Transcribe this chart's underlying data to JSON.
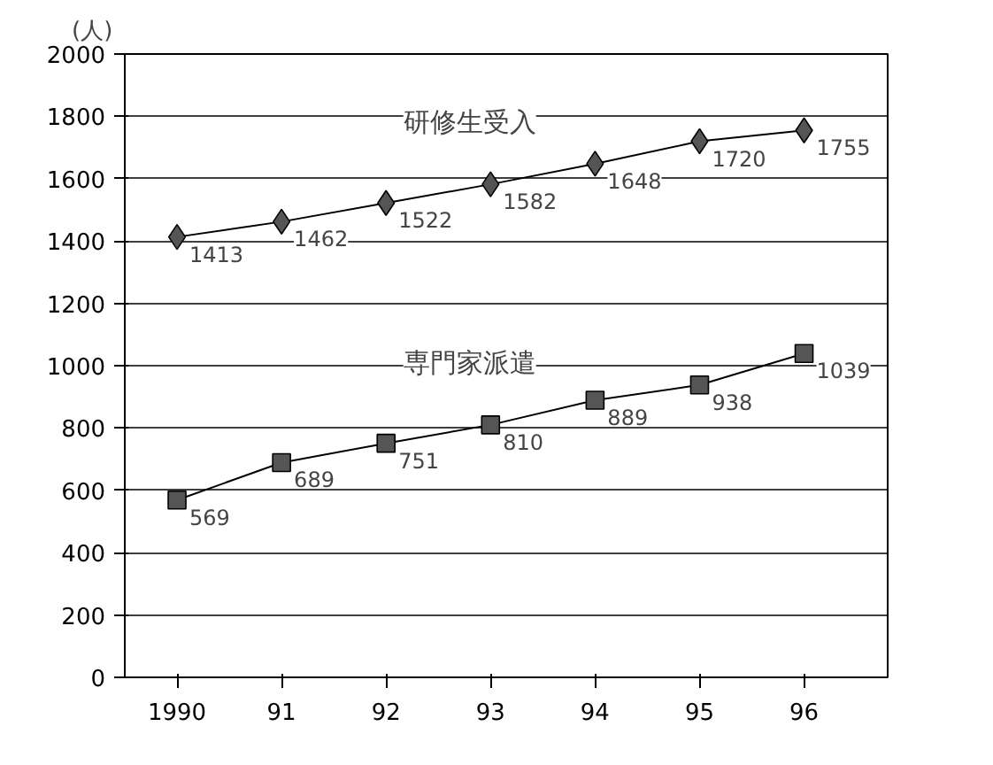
{
  "chart_data": {
    "type": "line",
    "ylabel": "(人)",
    "categories": [
      "1990",
      "91",
      "92",
      "93",
      "94",
      "95",
      "96"
    ],
    "series": [
      {
        "name": "研修生受入",
        "color": "#555555",
        "marker": "diamond",
        "values": [
          1413,
          1462,
          1522,
          1582,
          1648,
          1720,
          1755
        ]
      },
      {
        "name": "専門家派遣",
        "color": "#555555",
        "marker": "square",
        "values": [
          569,
          689,
          751,
          810,
          889,
          938,
          1039
        ]
      }
    ],
    "ylim": [
      0,
      2000
    ],
    "yticks": [
      0,
      200,
      400,
      600,
      800,
      1000,
      1200,
      1400,
      1600,
      1800,
      2000
    ],
    "grid": "y",
    "data_labels": true,
    "line_style": "solid"
  }
}
